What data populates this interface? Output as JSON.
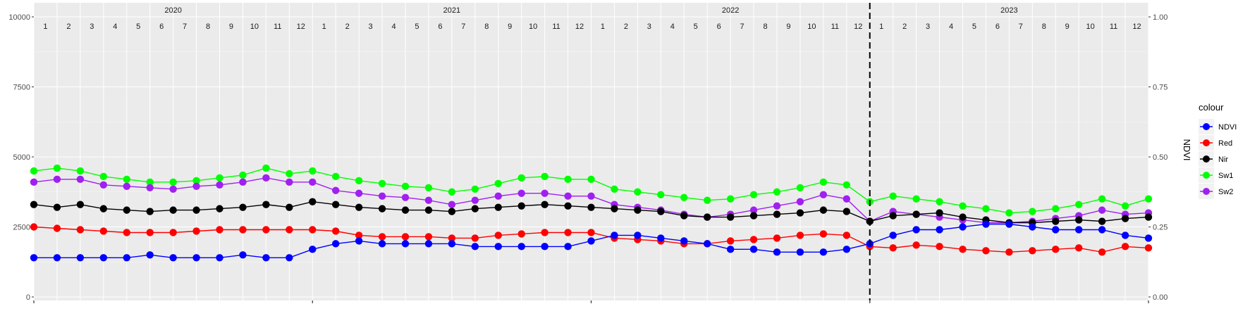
{
  "chart_data": {
    "type": "line",
    "years": [
      "2020",
      "2021",
      "2022",
      "2023"
    ],
    "month_labels": [
      "1",
      "2",
      "3",
      "4",
      "5",
      "6",
      "7",
      "8",
      "9",
      "10",
      "11",
      "12"
    ],
    "y_left": {
      "ticks": [
        "0",
        "2500",
        "5000",
        "7500",
        "10000"
      ],
      "values": [
        0,
        2500,
        5000,
        7500,
        10000
      ],
      "lim": [
        0,
        10000
      ]
    },
    "y_right": {
      "ticks": [
        "0.00",
        "0.25",
        "0.50",
        "0.75",
        "1.00"
      ],
      "values": [
        0,
        0.25,
        0.5,
        0.75,
        1.0
      ],
      "lim": [
        0,
        1
      ],
      "label": "NDVI"
    },
    "x_range_month_index": [
      0,
      48
    ],
    "reference_line": {
      "month_index": 36,
      "style": "dashed"
    },
    "grid": true,
    "legend": {
      "title": "colour",
      "placement": "right",
      "entries": [
        {
          "name": "NDVI",
          "color": "#0000ff"
        },
        {
          "name": "Red",
          "color": "#ff0000"
        },
        {
          "name": "Nir",
          "color": "#000000"
        },
        {
          "name": "Sw1",
          "color": "#00ff00"
        },
        {
          "name": "Sw2",
          "color": "#a020f0"
        }
      ]
    },
    "series": [
      {
        "name": "NDVI",
        "color": "#0000ff",
        "axis": "right",
        "x": [
          0,
          1,
          2,
          3,
          4,
          5,
          6,
          7,
          8,
          9,
          10,
          11,
          12,
          13,
          14,
          15,
          16,
          17,
          18,
          19,
          20,
          21,
          22,
          23,
          24,
          25,
          26,
          27,
          28,
          29,
          30,
          31,
          32,
          33,
          34,
          35,
          36,
          37,
          38,
          39,
          40,
          41,
          42,
          43,
          44,
          45,
          46,
          47,
          48
        ],
        "y": [
          0.14,
          0.14,
          0.14,
          0.14,
          0.14,
          0.15,
          0.14,
          0.14,
          0.14,
          0.15,
          0.14,
          0.14,
          0.17,
          0.19,
          0.2,
          0.19,
          0.19,
          0.19,
          0.19,
          0.18,
          0.18,
          0.18,
          0.18,
          0.18,
          0.2,
          0.22,
          0.22,
          0.21,
          0.2,
          0.19,
          0.17,
          0.17,
          0.16,
          0.16,
          0.16,
          0.17,
          0.19,
          0.22,
          0.24,
          0.24,
          0.25,
          0.26,
          0.26,
          0.25,
          0.24,
          0.24,
          0.24,
          0.22,
          0.21
        ]
      },
      {
        "name": "Red",
        "color": "#ff0000",
        "axis": "left",
        "x": [
          0,
          1,
          2,
          3,
          4,
          5,
          6,
          7,
          8,
          9,
          10,
          11,
          12,
          13,
          14,
          15,
          16,
          17,
          18,
          19,
          20,
          21,
          22,
          23,
          24,
          25,
          26,
          27,
          28,
          29,
          30,
          31,
          32,
          33,
          34,
          35,
          36,
          37,
          38,
          39,
          40,
          41,
          42,
          43,
          44,
          45,
          46,
          47,
          48
        ],
        "y": [
          2500,
          2450,
          2400,
          2350,
          2300,
          2300,
          2300,
          2350,
          2400,
          2400,
          2400,
          2400,
          2400,
          2350,
          2200,
          2150,
          2150,
          2150,
          2100,
          2100,
          2200,
          2250,
          2300,
          2300,
          2300,
          2100,
          2050,
          2000,
          1900,
          1900,
          2000,
          2050,
          2100,
          2200,
          2250,
          2200,
          1800,
          1750,
          1850,
          1800,
          1700,
          1650,
          1600,
          1650,
          1700,
          1750,
          1600,
          1800,
          1750
        ]
      },
      {
        "name": "Nir",
        "color": "#000000",
        "axis": "left",
        "x": [
          0,
          1,
          2,
          3,
          4,
          5,
          6,
          7,
          8,
          9,
          10,
          11,
          12,
          13,
          14,
          15,
          16,
          17,
          18,
          19,
          20,
          21,
          22,
          23,
          24,
          25,
          26,
          27,
          28,
          29,
          30,
          31,
          32,
          33,
          34,
          35,
          36,
          37,
          38,
          39,
          40,
          41,
          42,
          43,
          44,
          45,
          46,
          47,
          48
        ],
        "y": [
          3300,
          3200,
          3300,
          3150,
          3100,
          3050,
          3100,
          3100,
          3150,
          3200,
          3300,
          3200,
          3400,
          3300,
          3200,
          3150,
          3100,
          3100,
          3050,
          3150,
          3200,
          3250,
          3300,
          3250,
          3200,
          3150,
          3100,
          3050,
          2900,
          2850,
          2850,
          2900,
          2950,
          3000,
          3100,
          3050,
          2700,
          2900,
          2950,
          3000,
          2850,
          2750,
          2650,
          2650,
          2700,
          2750,
          2700,
          2800,
          2850
        ]
      },
      {
        "name": "Sw1",
        "color": "#00ff00",
        "axis": "left",
        "x": [
          0,
          1,
          2,
          3,
          4,
          5,
          6,
          7,
          8,
          9,
          10,
          11,
          12,
          13,
          14,
          15,
          16,
          17,
          18,
          19,
          20,
          21,
          22,
          23,
          24,
          25,
          26,
          27,
          28,
          29,
          30,
          31,
          32,
          33,
          34,
          35,
          36,
          37,
          38,
          39,
          40,
          41,
          42,
          43,
          44,
          45,
          46,
          47,
          48
        ],
        "y": [
          4500,
          4600,
          4500,
          4300,
          4200,
          4100,
          4100,
          4150,
          4250,
          4350,
          4600,
          4400,
          4500,
          4300,
          4150,
          4050,
          3950,
          3900,
          3750,
          3850,
          4050,
          4250,
          4300,
          4200,
          4200,
          3850,
          3750,
          3650,
          3550,
          3450,
          3500,
          3650,
          3750,
          3900,
          4100,
          4000,
          3400,
          3600,
          3500,
          3400,
          3250,
          3150,
          3000,
          3050,
          3150,
          3300,
          3500,
          3250,
          3500
        ]
      },
      {
        "name": "Sw2",
        "color": "#a020f0",
        "axis": "left",
        "x": [
          0,
          1,
          2,
          3,
          4,
          5,
          6,
          7,
          8,
          9,
          10,
          11,
          12,
          13,
          14,
          15,
          16,
          17,
          18,
          19,
          20,
          21,
          22,
          23,
          24,
          25,
          26,
          27,
          28,
          29,
          30,
          31,
          32,
          33,
          34,
          35,
          36,
          37,
          38,
          39,
          40,
          41,
          42,
          43,
          44,
          45,
          46,
          47,
          48
        ],
        "y": [
          4100,
          4200,
          4200,
          4000,
          3950,
          3900,
          3850,
          3950,
          4000,
          4100,
          4250,
          4100,
          4100,
          3800,
          3700,
          3600,
          3550,
          3450,
          3300,
          3450,
          3600,
          3700,
          3700,
          3600,
          3600,
          3300,
          3200,
          3100,
          2950,
          2850,
          2950,
          3100,
          3250,
          3400,
          3650,
          3500,
          2700,
          3050,
          2950,
          2850,
          2750,
          2650,
          2650,
          2700,
          2800,
          2900,
          3100,
          2950,
          3000
        ]
      }
    ]
  }
}
